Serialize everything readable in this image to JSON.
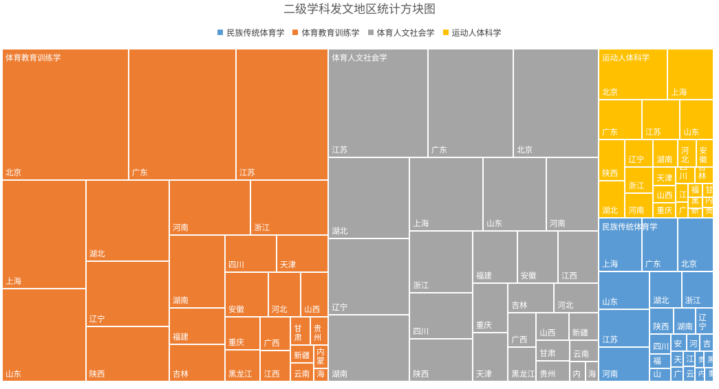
{
  "chart_data": {
    "type": "treemap",
    "title": "二级学科发文地区统计方块图",
    "legend": [
      "民族传统体育学",
      "体育教育训练学",
      "体育人文社会学",
      "运动人体科学"
    ],
    "legend_position": "top",
    "colors": {
      "民族传统体育学": "#5b9bd5",
      "体育教育训练学": "#ed7d31",
      "体育人文社会学": "#a5a5a5",
      "运动人体科学": "#ffc000"
    },
    "groups": [
      {
        "name": "体育教育训练学",
        "items": [
          {
            "label": "北京",
            "value": 43.0
          },
          {
            "label": "广东",
            "value": 36.5
          },
          {
            "label": "江苏",
            "value": 31.5
          },
          {
            "label": "上海",
            "value": 23.5
          },
          {
            "label": "山东",
            "value": 20.0
          },
          {
            "label": "湖北",
            "value": 17.5
          },
          {
            "label": "辽宁",
            "value": 14.0
          },
          {
            "label": "陕西",
            "value": 11.9
          },
          {
            "label": "河南",
            "value": 11.5
          },
          {
            "label": "浙江",
            "value": 11.0
          },
          {
            "label": "湖南",
            "value": 10.5
          },
          {
            "label": "福建",
            "value": 5.3
          },
          {
            "label": "四川",
            "value": 5.0
          },
          {
            "label": "天津",
            "value": 5.0
          },
          {
            "label": "吉林",
            "value": 5.3
          },
          {
            "label": "安徽",
            "value": 5.0
          },
          {
            "label": "河北",
            "value": 3.8
          },
          {
            "label": "山西",
            "value": 3.2
          },
          {
            "label": "重庆",
            "value": 3.0
          },
          {
            "label": "黑龙江",
            "value": 2.9
          },
          {
            "label": "江西",
            "value": 2.4
          },
          {
            "label": "广西",
            "value": 2.6
          },
          {
            "label": "甘肃",
            "value": 1.4
          },
          {
            "label": "贵州",
            "value": 1.3
          },
          {
            "label": "新疆",
            "value": 1.1
          },
          {
            "label": "内蒙",
            "value": 0.9
          },
          {
            "label": "云南",
            "value": 1.1
          },
          {
            "label": "海",
            "value": 0.5
          }
        ]
      },
      {
        "name": "体育人文社会学",
        "items": [
          {
            "label": "江苏",
            "value": 28.0
          },
          {
            "label": "广东",
            "value": 24.0
          },
          {
            "label": "北京",
            "value": 24.0
          },
          {
            "label": "湖北",
            "value": 17.0
          },
          {
            "label": "辽宁",
            "value": 16.0
          },
          {
            "label": "湖南",
            "value": 14.0
          },
          {
            "label": "上海",
            "value": 14.0
          },
          {
            "label": "山东",
            "value": 12.0
          },
          {
            "label": "河南",
            "value": 10.0
          },
          {
            "label": "浙江",
            "value": 10.0
          },
          {
            "label": "四川",
            "value": 7.5
          },
          {
            "label": "陕西",
            "value": 7.0
          },
          {
            "label": "福建",
            "value": 6.0
          },
          {
            "label": "安徽",
            "value": 5.5
          },
          {
            "label": "江西",
            "value": 5.5
          },
          {
            "label": "重庆",
            "value": 4.5
          },
          {
            "label": "天津",
            "value": 4.5
          },
          {
            "label": "吉林",
            "value": 3.5
          },
          {
            "label": "河北",
            "value": 3.4
          },
          {
            "label": "山西",
            "value": 2.3
          },
          {
            "label": "广西",
            "value": 2.5
          },
          {
            "label": "黑龙江",
            "value": 2.5
          },
          {
            "label": "新疆",
            "value": 2.1
          },
          {
            "label": "甘肃",
            "value": 1.8
          },
          {
            "label": "贵州",
            "value": 1.8
          },
          {
            "label": "云南",
            "value": 1.6
          },
          {
            "label": "内",
            "value": 0.8
          },
          {
            "label": "海",
            "value": 0.7
          }
        ]
      },
      {
        "name": "运动人体科学",
        "items": [
          {
            "label": "北京",
            "value": 9.0
          },
          {
            "label": "上海",
            "value": 6.0
          },
          {
            "label": "广东",
            "value": 4.5
          },
          {
            "label": "江苏",
            "value": 4.0
          },
          {
            "label": "山东",
            "value": 3.5
          },
          {
            "label": "陕西",
            "value": 2.8
          },
          {
            "label": "湖北",
            "value": 2.5
          },
          {
            "label": "辽宁",
            "value": 2.0
          },
          {
            "label": "浙江",
            "value": 1.9
          },
          {
            "label": "湖南",
            "value": 1.7
          },
          {
            "label": "河南",
            "value": 1.8
          },
          {
            "label": "河北",
            "value": 1.3
          },
          {
            "label": "安徽",
            "value": 1.2
          },
          {
            "label": "山西",
            "value": 1.0
          },
          {
            "label": "天津",
            "value": 1.1
          },
          {
            "label": "四川",
            "value": 0.8
          },
          {
            "label": "重庆",
            "value": 0.9
          },
          {
            "label": "吉林",
            "value": 0.8
          },
          {
            "label": "江",
            "value": 0.6
          },
          {
            "label": "广",
            "value": 0.5
          },
          {
            "label": "甘",
            "value": 0.4
          },
          {
            "label": "黑",
            "value": 0.4
          },
          {
            "label": "内",
            "value": 0.3
          },
          {
            "label": "福",
            "value": 0.5
          },
          {
            "label": "新",
            "value": 0.35
          },
          {
            "label": "贵",
            "value": 0.3
          }
        ]
      },
      {
        "name": "民族传统体育学",
        "items": [
          {
            "label": "上海",
            "value": 6.0
          },
          {
            "label": "广东",
            "value": 5.0
          },
          {
            "label": "北京",
            "value": 5.0
          },
          {
            "label": "山东",
            "value": 5.0
          },
          {
            "label": "江苏",
            "value": 5.0
          },
          {
            "label": "河南",
            "value": 4.5
          },
          {
            "label": "湖北",
            "value": 3.0
          },
          {
            "label": "浙江",
            "value": 3.0
          },
          {
            "label": "陕西",
            "value": 1.6
          },
          {
            "label": "湖南",
            "value": 1.5
          },
          {
            "label": "福",
            "value": 0.8
          },
          {
            "label": "辽宁",
            "value": 1.2
          },
          {
            "label": "四川",
            "value": 1.1
          },
          {
            "label": "山",
            "value": 0.7
          },
          {
            "label": "安",
            "value": 0.7
          },
          {
            "label": "河",
            "value": 0.6
          },
          {
            "label": "吉",
            "value": 0.6
          },
          {
            "label": "广",
            "value": 0.45
          },
          {
            "label": "江",
            "value": 0.45
          },
          {
            "label": "贵",
            "value": 0.4
          },
          {
            "label": "天",
            "value": 0.5
          },
          {
            "label": "云",
            "value": 0.45
          },
          {
            "label": "黑",
            "value": 0.4
          },
          {
            "label": "内",
            "value": 0.35
          },
          {
            "label": "重",
            "value": 0.3
          }
        ]
      }
    ]
  }
}
